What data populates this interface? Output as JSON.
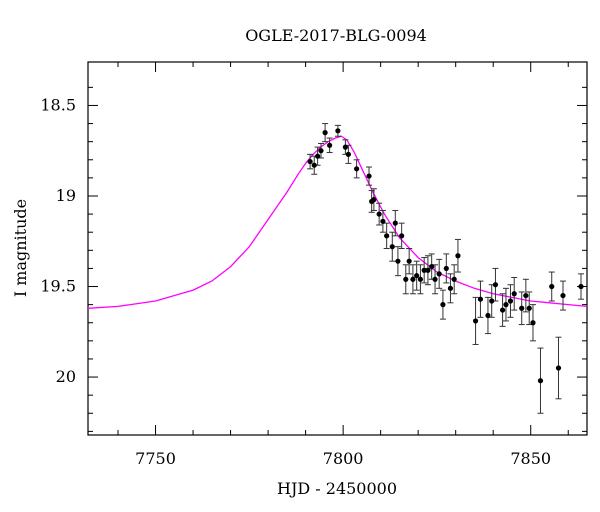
{
  "chart_data": {
    "type": "scatter",
    "title": "OGLE-2017-BLG-0094",
    "xlabel": "HJD - 2450000",
    "ylabel": "I magnitude",
    "xlim": [
      7732,
      7865
    ],
    "ylim": [
      20.32,
      18.26
    ],
    "y_inverted": true,
    "x_ticks": [
      7750,
      7800,
      7850
    ],
    "y_ticks": [
      18.5,
      19,
      19.5,
      20
    ],
    "x_tick_labels": [
      "7750",
      "7800",
      "7850"
    ],
    "y_tick_labels": [
      "18.5",
      "19",
      "19.5",
      "20"
    ],
    "grid": false,
    "legend": "none",
    "series": [
      {
        "kind": "points",
        "color": "#000000",
        "x": [
          7791.2,
          7792.3,
          7793.2,
          7794.1,
          7795.2,
          7796.4,
          7798.6,
          7800.6,
          7801.4,
          7803.6,
          7806.9,
          7807.6,
          7808.2,
          7809.6,
          7810.6,
          7811.6,
          7813.1,
          7813.9,
          7814.6,
          7815.6,
          7816.7,
          7817.6,
          7818.6,
          7819.6,
          7820.6,
          7821.6,
          7822.6,
          7823.6,
          7824.5,
          7825.6,
          7826.6,
          7827.5,
          7828.6,
          7829.6,
          7830.6,
          7835.3,
          7836.6,
          7838.6,
          7839.6,
          7840.6,
          7842.5,
          7843.4,
          7844.6,
          7845.6,
          7847.6,
          7848.7,
          7849.6,
          7850.6,
          7852.6,
          7855.6,
          7857.4,
          7858.6,
          7863.4
        ],
        "y": [
          18.81,
          18.83,
          18.78,
          18.75,
          18.65,
          18.72,
          18.64,
          18.73,
          18.77,
          18.85,
          18.89,
          19.03,
          19.02,
          19.1,
          19.14,
          19.22,
          19.28,
          19.15,
          19.36,
          19.22,
          19.46,
          19.36,
          19.46,
          19.44,
          19.46,
          19.41,
          19.41,
          19.39,
          19.46,
          19.43,
          19.6,
          19.4,
          19.51,
          19.46,
          19.33,
          19.69,
          19.57,
          19.66,
          19.58,
          19.49,
          19.63,
          19.6,
          19.58,
          19.54,
          19.62,
          19.55,
          19.62,
          19.7,
          20.02,
          19.5,
          19.95,
          19.55,
          19.5
        ],
        "err": [
          0.04,
          0.05,
          0.05,
          0.04,
          0.05,
          0.04,
          0.03,
          0.04,
          0.05,
          0.05,
          0.05,
          0.06,
          0.06,
          0.06,
          0.06,
          0.07,
          0.08,
          0.07,
          0.08,
          0.07,
          0.08,
          0.07,
          0.08,
          0.08,
          0.08,
          0.07,
          0.08,
          0.07,
          0.08,
          0.08,
          0.08,
          0.08,
          0.08,
          0.08,
          0.09,
          0.13,
          0.1,
          0.1,
          0.09,
          0.09,
          0.09,
          0.09,
          0.09,
          0.09,
          0.09,
          0.09,
          0.09,
          0.1,
          0.18,
          0.08,
          0.17,
          0.08,
          0.07
        ]
      },
      {
        "kind": "model",
        "color": "#ff00ff",
        "x": [
          7732,
          7740,
          7750,
          7760,
          7765,
          7770,
          7775,
          7780,
          7785,
          7788,
          7790,
          7792,
          7794,
          7796,
          7798,
          7799.5,
          7801,
          7803,
          7805,
          7808,
          7811,
          7815,
          7820,
          7825,
          7830,
          7835,
          7840,
          7845,
          7850,
          7855,
          7860,
          7865
        ],
        "y": [
          19.62,
          19.61,
          19.58,
          19.52,
          19.47,
          19.39,
          19.28,
          19.13,
          18.98,
          18.88,
          18.82,
          18.77,
          18.73,
          18.7,
          18.68,
          18.67,
          18.69,
          18.76,
          18.85,
          18.98,
          19.1,
          19.23,
          19.34,
          19.42,
          19.47,
          19.51,
          19.54,
          19.56,
          19.58,
          19.59,
          19.6,
          19.61
        ]
      }
    ]
  }
}
